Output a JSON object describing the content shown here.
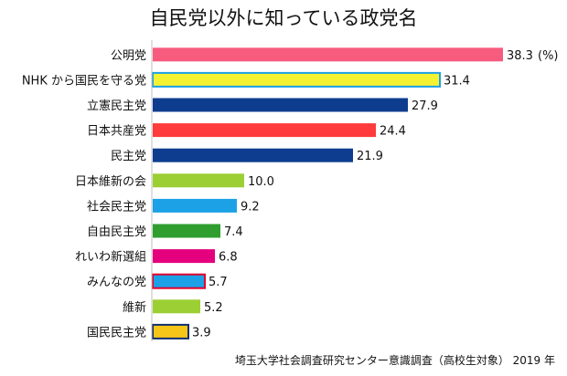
{
  "chart_data": {
    "type": "bar",
    "orientation": "horizontal",
    "title": "自民党以外に知っている政党名",
    "categories": [
      "公明党",
      "NHK から国民を守る党",
      "立憲民主党",
      "日本共産党",
      "民主党",
      "日本維新の会",
      "社会民主党",
      "自由民主党",
      "れいわ新選組",
      "みんなの党",
      "維新",
      "国民民主党"
    ],
    "values": [
      38.3,
      31.4,
      27.9,
      24.4,
      21.9,
      10.0,
      9.2,
      7.4,
      6.8,
      5.7,
      5.2,
      3.9
    ],
    "value_labels": [
      "38.3",
      "31.4",
      "27.9",
      "24.4",
      "21.9",
      "10.0",
      "9.2",
      "7.4",
      "6.8",
      "5.7",
      "5.2",
      "3.9"
    ],
    "unit_label": "(%)",
    "colors": [
      "#f75c7f",
      "#f5f231",
      "#0e3d8f",
      "#ff3b3b",
      "#0e3d8f",
      "#9ccf34",
      "#1ca1e6",
      "#2f9e2f",
      "#e5007e",
      "#1ca1e6",
      "#9ccf34",
      "#f5c518"
    ],
    "outlines": [
      "",
      "#1ca1e6",
      "",
      "",
      "",
      "",
      "",
      "",
      "",
      "#e5002d",
      "",
      "#0e2f6e"
    ],
    "xlim": [
      0,
      40
    ],
    "grid": false,
    "legend": "none",
    "source": "埼玉大学社会調査研究センター意識調査（高校生対象） 2019 年"
  }
}
